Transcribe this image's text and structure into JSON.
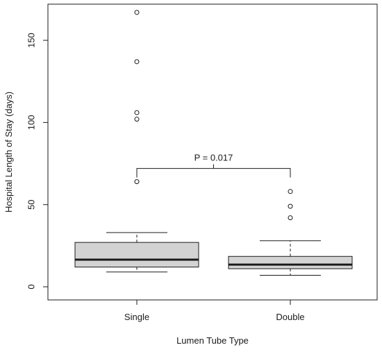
{
  "chart_data": {
    "type": "boxplot",
    "title": "",
    "xlabel": "Lumen Tube Type",
    "ylabel": "Hospital Length of Stay (days)",
    "ylim": [
      -8,
      172
    ],
    "y_ticks": [
      0,
      50,
      100,
      150
    ],
    "grid": false,
    "categories": [
      "Single",
      "Double"
    ],
    "boxes": [
      {
        "category": "Single",
        "whisker_low": 9,
        "q1": 12,
        "median": 16.5,
        "q3": 27,
        "whisker_high": 33,
        "outliers": [
          64,
          102,
          106,
          137,
          167
        ]
      },
      {
        "category": "Double",
        "whisker_low": 7,
        "q1": 11,
        "median": 13.5,
        "q3": 18.5,
        "whisker_high": 28,
        "outliers": [
          42,
          49,
          58
        ]
      }
    ],
    "annotations": [
      {
        "type": "significance_bracket",
        "text": "P = 0.017",
        "from": "Single",
        "to": "Double",
        "y": 72
      }
    ],
    "colors": {
      "box_fill": "#d3d3d3",
      "line": "#1a1a1a",
      "frame": "#1a1a1a"
    }
  }
}
